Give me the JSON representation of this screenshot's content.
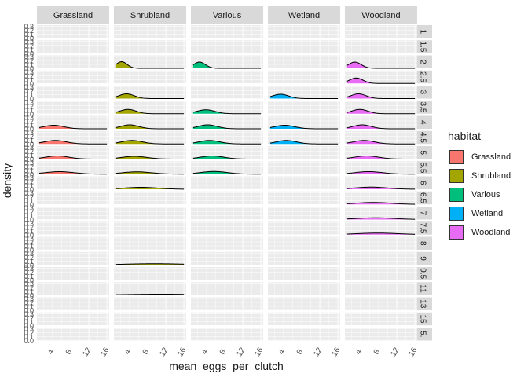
{
  "chart_data": {
    "type": "area",
    "facet_columns": [
      "Grassland",
      "Shrubland",
      "Various",
      "Wetland",
      "Woodland"
    ],
    "facet_rows": [
      "1",
      "1.5",
      "2",
      "2.5",
      "3",
      "3.5",
      "4",
      "4.5",
      "5",
      "5.5",
      "6",
      "6.5",
      "7",
      "7.5",
      "8",
      "9",
      "9.5",
      "11",
      "13",
      "15",
      "5."
    ],
    "row_label_text": [
      "1",
      "1.5",
      "2",
      "2.5",
      "3",
      "3.5",
      "4",
      "4.5",
      "5",
      "5.5",
      "6",
      "6.5",
      "7",
      "7.5",
      "8",
      "9",
      "9.5",
      "11",
      "13",
      "15",
      "5."
    ],
    "xlabel": "mean_eggs_per_clutch",
    "ylabel": "density",
    "x_ticks": [
      "4",
      "8",
      "12",
      "16"
    ],
    "x_tick_values": [
      4,
      8,
      12,
      16
    ],
    "y_tick_labels": [
      "0.0",
      "0.1",
      "0.2",
      "0.3"
    ],
    "xlim": [
      0.5,
      16.5
    ],
    "ylim": [
      0,
      0.3
    ],
    "legend_title": "habitat",
    "legend": [
      {
        "name": "Grassland",
        "color": "#F8766D"
      },
      {
        "name": "Shrubland",
        "color": "#A3A500"
      },
      {
        "name": "Various",
        "color": "#00BF7D"
      },
      {
        "name": "Wetland",
        "color": "#00B0F6"
      },
      {
        "name": "Woodland",
        "color": "#E76BF3"
      }
    ],
    "legend_position": "right",
    "grid": true,
    "densities": [
      {
        "row": "2",
        "col": "Shrubland",
        "peak_x": 2.2,
        "sd": 1.2,
        "peak_density": 0.17
      },
      {
        "row": "2",
        "col": "Various",
        "peak_x": 2.4,
        "sd": 1.3,
        "peak_density": 0.16
      },
      {
        "row": "2",
        "col": "Woodland",
        "peak_x": 2.7,
        "sd": 1.4,
        "peak_density": 0.16
      },
      {
        "row": "2.5",
        "col": "Woodland",
        "peak_x": 3.0,
        "sd": 1.5,
        "peak_density": 0.14
      },
      {
        "row": "3",
        "col": "Shrubland",
        "peak_x": 3.3,
        "sd": 1.7,
        "peak_density": 0.12
      },
      {
        "row": "3",
        "col": "Wetland",
        "peak_x": 3.3,
        "sd": 1.8,
        "peak_density": 0.11
      },
      {
        "row": "3",
        "col": "Woodland",
        "peak_x": 3.5,
        "sd": 1.7,
        "peak_density": 0.12
      },
      {
        "row": "3.5",
        "col": "Shrubland",
        "peak_x": 3.6,
        "sd": 1.8,
        "peak_density": 0.11
      },
      {
        "row": "3.5",
        "col": "Various",
        "peak_x": 3.8,
        "sd": 2.0,
        "peak_density": 0.1
      },
      {
        "row": "3.5",
        "col": "Woodland",
        "peak_x": 3.8,
        "sd": 1.8,
        "peak_density": 0.11
      },
      {
        "row": "4",
        "col": "Grassland",
        "peak_x": 4.2,
        "sd": 2.2,
        "peak_density": 0.09
      },
      {
        "row": "4",
        "col": "Shrubland",
        "peak_x": 4.0,
        "sd": 2.0,
        "peak_density": 0.1
      },
      {
        "row": "4",
        "col": "Various",
        "peak_x": 4.2,
        "sd": 2.1,
        "peak_density": 0.1
      },
      {
        "row": "4",
        "col": "Wetland",
        "peak_x": 4.2,
        "sd": 2.2,
        "peak_density": 0.09
      },
      {
        "row": "4",
        "col": "Woodland",
        "peak_x": 4.3,
        "sd": 2.0,
        "peak_density": 0.1
      },
      {
        "row": "4.5",
        "col": "Grassland",
        "peak_x": 4.6,
        "sd": 2.4,
        "peak_density": 0.09
      },
      {
        "row": "4.5",
        "col": "Shrubland",
        "peak_x": 4.5,
        "sd": 2.3,
        "peak_density": 0.09
      },
      {
        "row": "4.5",
        "col": "Various",
        "peak_x": 4.6,
        "sd": 2.3,
        "peak_density": 0.09
      },
      {
        "row": "4.5",
        "col": "Wetland",
        "peak_x": 4.6,
        "sd": 2.2,
        "peak_density": 0.09
      },
      {
        "row": "4.5",
        "col": "Woodland",
        "peak_x": 4.7,
        "sd": 2.3,
        "peak_density": 0.09
      },
      {
        "row": "5",
        "col": "Grassland",
        "peak_x": 5.0,
        "sd": 2.6,
        "peak_density": 0.08
      },
      {
        "row": "5",
        "col": "Shrubland",
        "peak_x": 5.0,
        "sd": 2.8,
        "peak_density": 0.07
      },
      {
        "row": "5",
        "col": "Various",
        "peak_x": 5.2,
        "sd": 2.6,
        "peak_density": 0.08
      },
      {
        "row": "5",
        "col": "Woodland",
        "peak_x": 5.3,
        "sd": 2.7,
        "peak_density": 0.08
      },
      {
        "row": "5.5",
        "col": "Grassland",
        "peak_x": 5.5,
        "sd": 3.2,
        "peak_density": 0.065
      },
      {
        "row": "5.5",
        "col": "Shrubland",
        "peak_x": 5.6,
        "sd": 3.3,
        "peak_density": 0.06
      },
      {
        "row": "5.5",
        "col": "Various",
        "peak_x": 5.6,
        "sd": 3.0,
        "peak_density": 0.07
      },
      {
        "row": "5.5",
        "col": "Woodland",
        "peak_x": 5.8,
        "sd": 3.1,
        "peak_density": 0.065
      },
      {
        "row": "6",
        "col": "Shrubland",
        "peak_x": 6.5,
        "sd": 3.8,
        "peak_density": 0.05
      },
      {
        "row": "6",
        "col": "Woodland",
        "peak_x": 6.3,
        "sd": 3.6,
        "peak_density": 0.055
      },
      {
        "row": "6.5",
        "col": "Woodland",
        "peak_x": 6.8,
        "sd": 4.0,
        "peak_density": 0.05
      },
      {
        "row": "7",
        "col": "Woodland",
        "peak_x": 7.3,
        "sd": 4.3,
        "peak_density": 0.045
      },
      {
        "row": "7.5",
        "col": "Woodland",
        "peak_x": 7.8,
        "sd": 4.8,
        "peak_density": 0.04
      },
      {
        "row": "9",
        "col": "Shrubland",
        "peak_x": 9.5,
        "sd": 6.5,
        "peak_density": 0.03
      },
      {
        "row": "11",
        "col": "Shrubland",
        "peak_x": 11.0,
        "sd": 8.0,
        "peak_density": 0.025
      }
    ]
  }
}
